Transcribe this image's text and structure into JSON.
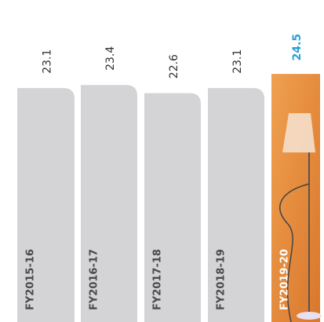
{
  "chart_data": {
    "type": "bar",
    "categories": [
      "FY2015-16",
      "FY2016-17",
      "FY2017-18",
      "FY2018-19",
      "FY2019-20"
    ],
    "values": [
      23.1,
      23.4,
      22.6,
      23.1,
      24.5
    ],
    "colors": [
      "#d4d4d6",
      "#d4d4d6",
      "#d4d4d6",
      "#d4d4d6",
      "#e98a3c"
    ],
    "value_label_colors": [
      "#333333",
      "#333333",
      "#333333",
      "#333333",
      "#2a9fd6"
    ],
    "category_label_colors": [
      "#4a4a4a",
      "#4a4a4a",
      "#4a4a4a",
      "#4a4a4a",
      "#ffffff"
    ],
    "ylim": [
      0,
      31.8
    ]
  }
}
